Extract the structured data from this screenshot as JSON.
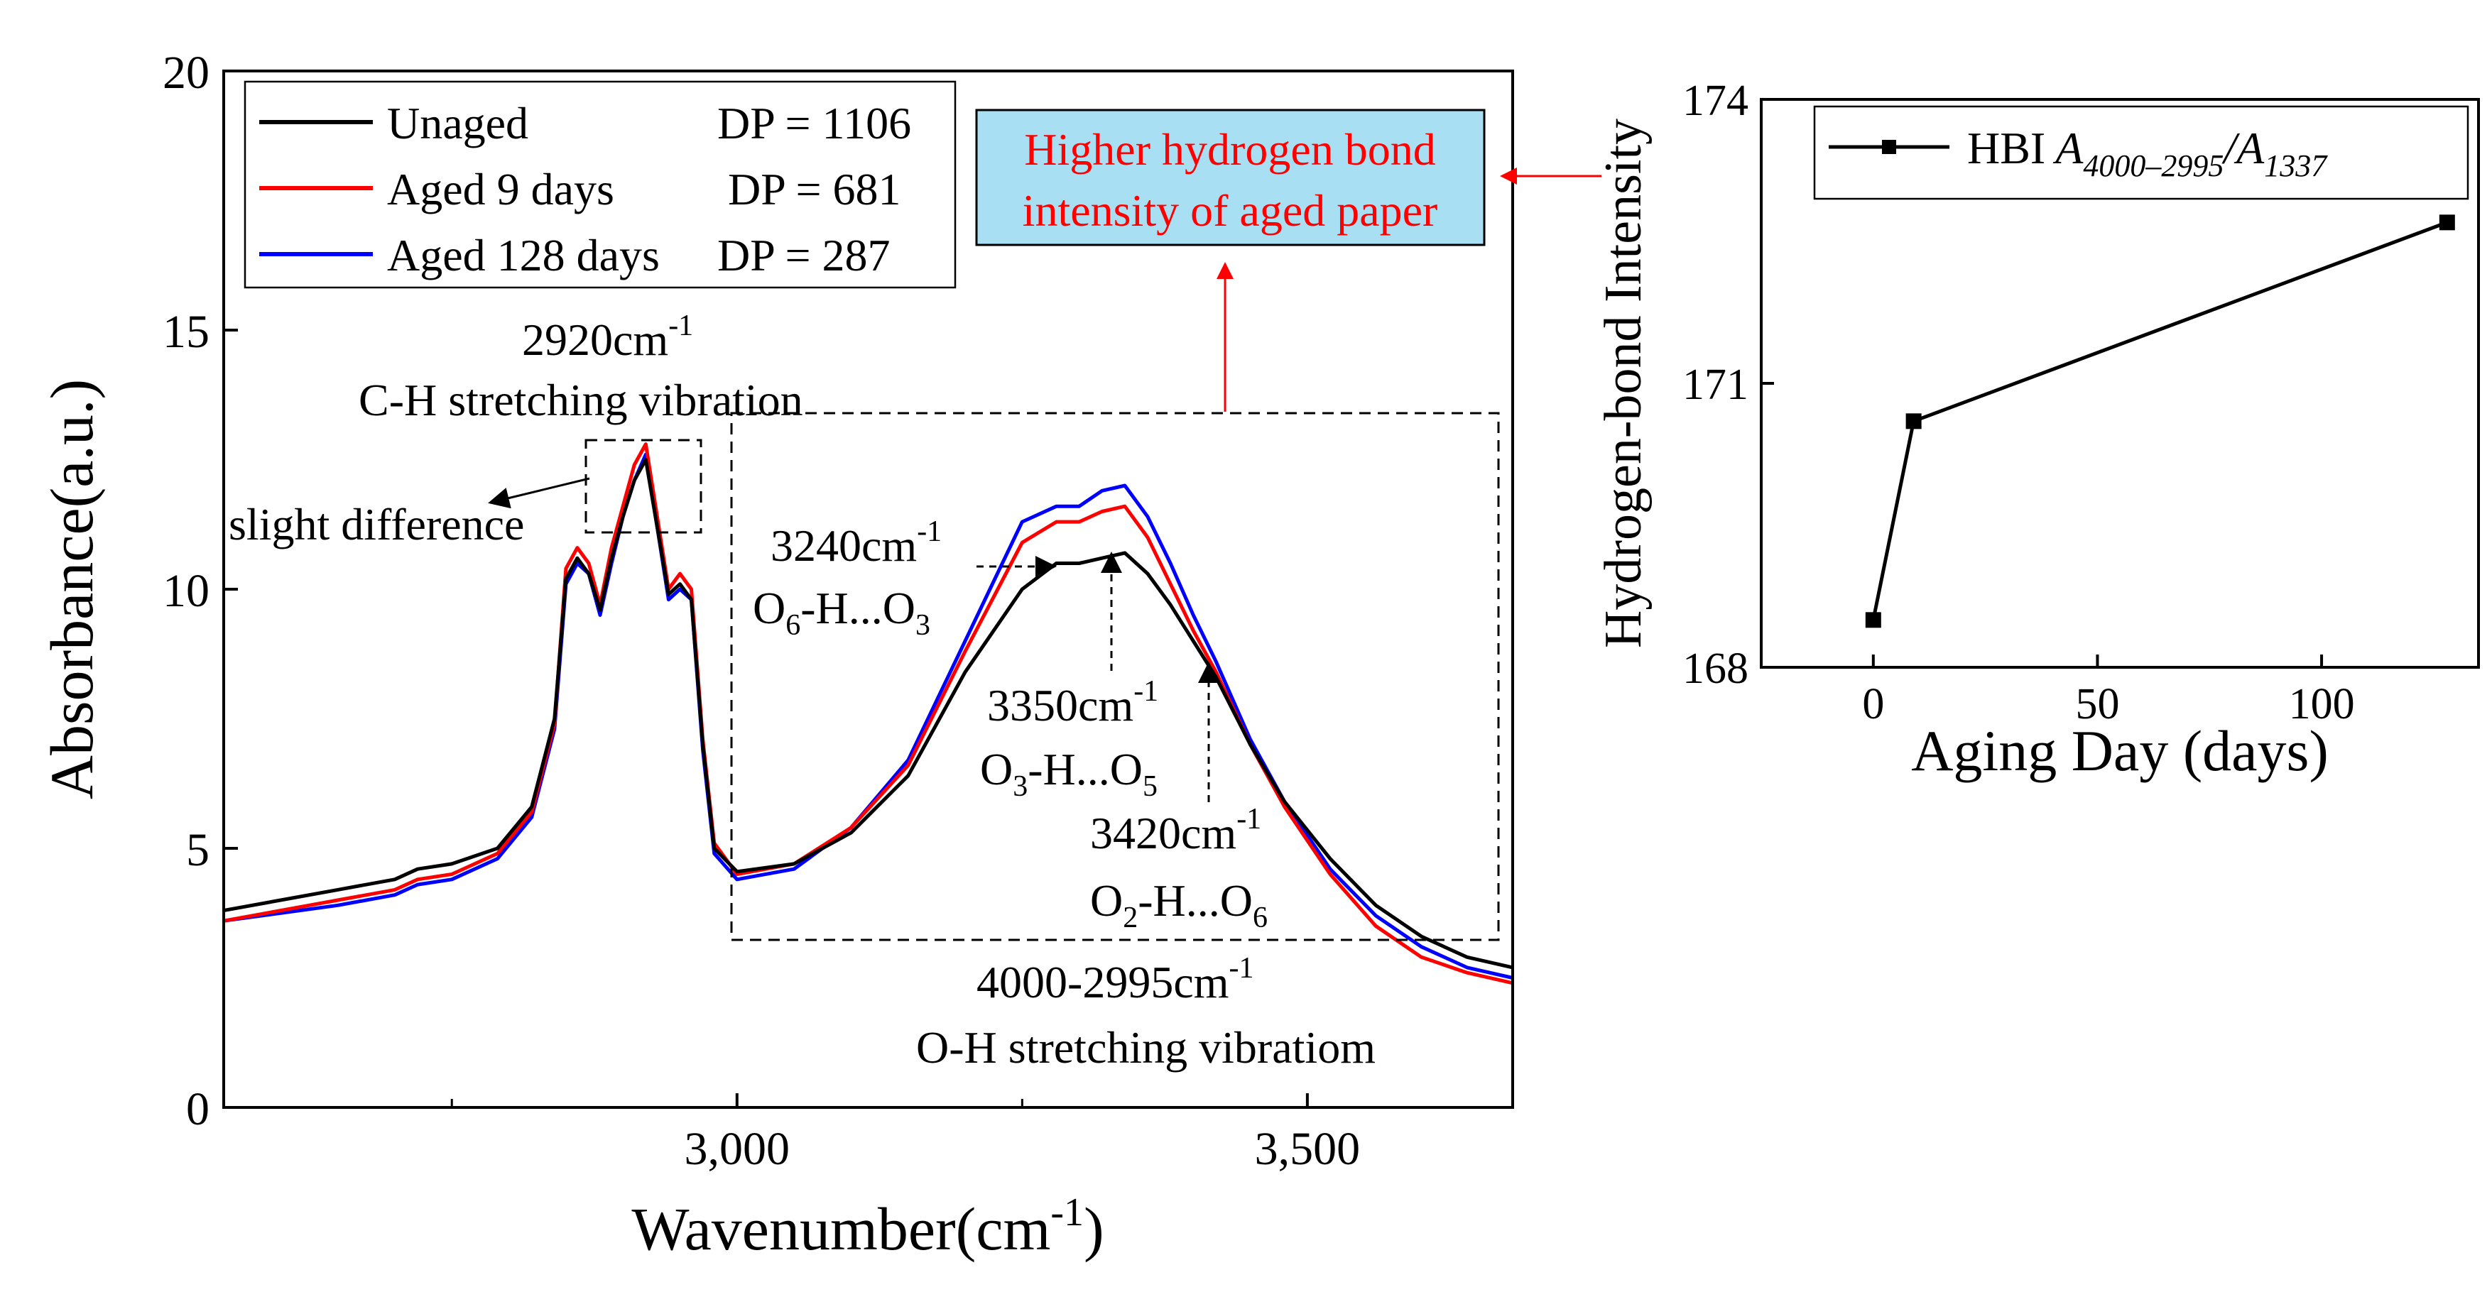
{
  "chart_data": [
    {
      "type": "line",
      "xlabel": "Wavenumber(cm",
      "xlabel_sup": "-1",
      "xlabel_end": ")",
      "ylabel": "Absorbance(a.u.)",
      "xlim": [
        2550,
        3680
      ],
      "ylim": [
        0,
        20
      ],
      "xticks": [
        3000,
        3500
      ],
      "xtick_labels": [
        "3,000",
        "3,500"
      ],
      "yticks": [
        0,
        5,
        10,
        15,
        20
      ],
      "ytick_labels": [
        "0",
        "5",
        "10",
        "15",
        "20"
      ],
      "series": [
        {
          "name": "Unaged",
          "dp": "DP = 1106",
          "color": "#000000",
          "x": [
            2550,
            2650,
            2700,
            2720,
            2750,
            2790,
            2820,
            2840,
            2850,
            2860,
            2870,
            2880,
            2890,
            2900,
            2910,
            2920,
            2930,
            2940,
            2950,
            2960,
            2970,
            2980,
            3000,
            3050,
            3100,
            3150,
            3200,
            3250,
            3280,
            3300,
            3320,
            3340,
            3360,
            3380,
            3400,
            3420,
            3450,
            3480,
            3520,
            3560,
            3600,
            3640,
            3680
          ],
          "y": [
            3.8,
            4.2,
            4.4,
            4.6,
            4.7,
            5.0,
            5.8,
            7.5,
            10.2,
            10.6,
            10.3,
            9.6,
            10.6,
            11.4,
            12.1,
            12.5,
            11.2,
            9.9,
            10.1,
            9.8,
            7.0,
            5.0,
            4.55,
            4.7,
            5.3,
            6.4,
            8.4,
            10.0,
            10.5,
            10.5,
            10.6,
            10.7,
            10.3,
            9.7,
            9.0,
            8.3,
            7.0,
            5.9,
            4.8,
            3.9,
            3.3,
            2.9,
            2.7
          ]
        },
        {
          "name": "Aged 9 days",
          "dp": "DP = 681",
          "color": "#ff0000",
          "x": [
            2550,
            2650,
            2700,
            2720,
            2750,
            2790,
            2820,
            2840,
            2850,
            2860,
            2870,
            2880,
            2890,
            2900,
            2910,
            2920,
            2930,
            2940,
            2950,
            2960,
            2970,
            2980,
            3000,
            3050,
            3100,
            3150,
            3200,
            3250,
            3280,
            3300,
            3320,
            3340,
            3360,
            3380,
            3400,
            3420,
            3450,
            3480,
            3520,
            3560,
            3600,
            3640,
            3680
          ],
          "y": [
            3.6,
            4.0,
            4.2,
            4.4,
            4.5,
            4.9,
            5.7,
            7.4,
            10.4,
            10.8,
            10.5,
            9.7,
            10.8,
            11.6,
            12.4,
            12.8,
            11.4,
            10.0,
            10.3,
            10.0,
            7.1,
            5.1,
            4.5,
            4.7,
            5.4,
            6.6,
            8.8,
            10.9,
            11.3,
            11.3,
            11.5,
            11.6,
            11.0,
            10.1,
            9.2,
            8.4,
            7.0,
            5.8,
            4.5,
            3.5,
            2.9,
            2.6,
            2.4
          ]
        },
        {
          "name": "Aged 128 days",
          "dp": "DP = 287",
          "color": "#0000ff",
          "x": [
            2550,
            2650,
            2700,
            2720,
            2750,
            2790,
            2820,
            2840,
            2850,
            2860,
            2870,
            2880,
            2890,
            2900,
            2910,
            2920,
            2930,
            2940,
            2950,
            2960,
            2970,
            2980,
            3000,
            3050,
            3100,
            3150,
            3200,
            3250,
            3280,
            3300,
            3320,
            3340,
            3360,
            3380,
            3400,
            3420,
            3450,
            3480,
            3520,
            3560,
            3600,
            3640,
            3680
          ],
          "y": [
            3.6,
            3.9,
            4.1,
            4.3,
            4.4,
            4.8,
            5.6,
            7.3,
            10.1,
            10.5,
            10.3,
            9.5,
            10.5,
            11.4,
            12.1,
            12.6,
            11.2,
            9.8,
            10.0,
            9.8,
            6.9,
            4.9,
            4.4,
            4.6,
            5.4,
            6.7,
            9.0,
            11.3,
            11.6,
            11.6,
            11.9,
            12.0,
            11.4,
            10.5,
            9.5,
            8.6,
            7.1,
            5.9,
            4.6,
            3.7,
            3.1,
            2.7,
            2.5
          ]
        }
      ],
      "annotations": {
        "ch_wavenumber": "2920cm",
        "ch_wavenumber_sup": "-1",
        "ch_label": "C-H stretching vibration",
        "slight_difference": "slight difference",
        "oh_wavenumber": "4000-2995cm",
        "oh_wavenumber_sup": "-1",
        "oh_label": "O-H stretching vibratiom",
        "peak_3240": "3240cm",
        "peak_3240_sup": "-1",
        "bond_3240": [
          "O",
          "6",
          "-H...O",
          "3"
        ],
        "peak_3350": "3350cm",
        "peak_3350_sup": "-1",
        "bond_3350": [
          "O",
          "3",
          "-H...O",
          "5"
        ],
        "peak_3420": "3420cm",
        "peak_3420_sup": "-1",
        "bond_3420": [
          "O",
          "2",
          "-H...O",
          "6"
        ]
      }
    },
    {
      "type": "line",
      "xlabel": "Aging Day (days)",
      "ylabel": "Hydrogen-bond Intensity",
      "xlim": [
        -25,
        135
      ],
      "ylim": [
        168,
        174
      ],
      "xticks": [
        0,
        50,
        100
      ],
      "xtick_labels": [
        "0",
        "50",
        "100"
      ],
      "yticks": [
        168,
        171,
        174
      ],
      "ytick_labels": [
        "168",
        "171",
        "174"
      ],
      "series": [
        {
          "name": "HBI",
          "name_math_a": "A",
          "name_math_a_sub": "4000–2995",
          "name_math_b": "/A",
          "name_math_b_sub": "1337",
          "color": "#000000",
          "marker": "square",
          "x": [
            0,
            9,
            128
          ],
          "y": [
            168.5,
            170.6,
            172.7
          ]
        }
      ]
    }
  ],
  "callout": {
    "line1": "Higher hydrogen bond",
    "line2": "intensity of aged paper",
    "text_color": "#ff0000",
    "fill_color": "#a9dff3",
    "arrow_color": "#ff0000"
  }
}
